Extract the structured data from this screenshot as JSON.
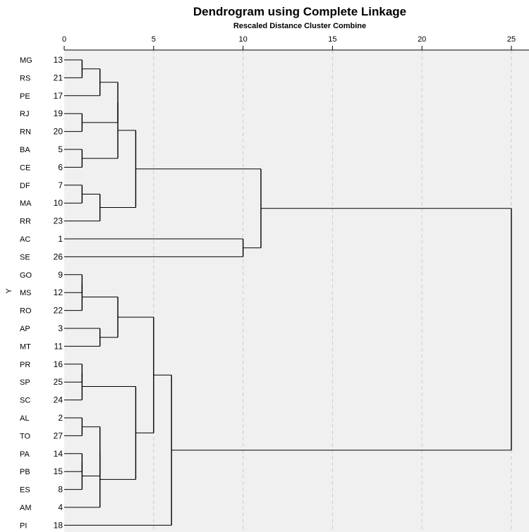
{
  "chart_data": {
    "type": "dendrogram",
    "title": "Dendrogram using Complete Linkage",
    "subtitle": "Rescaled Distance Cluster Combine",
    "ylabel": "Y",
    "x_ticks": [
      0,
      5,
      10,
      15,
      20,
      25
    ],
    "xlim": [
      0,
      25
    ],
    "grid": true,
    "colors": {
      "plot_bg": "#f0f0f0",
      "grid": "#cccccc",
      "link": "#000000"
    },
    "leaves": [
      {
        "label": "MG",
        "case": "13"
      },
      {
        "label": "RS",
        "case": "21"
      },
      {
        "label": "PE",
        "case": "17"
      },
      {
        "label": "RJ",
        "case": "19"
      },
      {
        "label": "RN",
        "case": "20"
      },
      {
        "label": "BA",
        "case": "5"
      },
      {
        "label": "CE",
        "case": "6"
      },
      {
        "label": "DF",
        "case": "7"
      },
      {
        "label": "MA",
        "case": "10"
      },
      {
        "label": "RR",
        "case": "23"
      },
      {
        "label": "AC",
        "case": "1"
      },
      {
        "label": "SE",
        "case": "26"
      },
      {
        "label": "GO",
        "case": "9"
      },
      {
        "label": "MS",
        "case": "12"
      },
      {
        "label": "RO",
        "case": "22"
      },
      {
        "label": "AP",
        "case": "3"
      },
      {
        "label": "MT",
        "case": "11"
      },
      {
        "label": "PR",
        "case": "16"
      },
      {
        "label": "SP",
        "case": "25"
      },
      {
        "label": "SC",
        "case": "24"
      },
      {
        "label": "AL",
        "case": "2"
      },
      {
        "label": "TO",
        "case": "27"
      },
      {
        "label": "PA",
        "case": "14"
      },
      {
        "label": "PB",
        "case": "15"
      },
      {
        "label": "ES",
        "case": "8"
      },
      {
        "label": "AM",
        "case": "4"
      },
      {
        "label": "PI",
        "case": "18"
      }
    ],
    "merges": [
      {
        "children": [
          "L0",
          "L1"
        ],
        "height": 1.0
      },
      {
        "children": [
          "L3",
          "L4"
        ],
        "height": 1.0
      },
      {
        "children": [
          "L5",
          "L6"
        ],
        "height": 1.0
      },
      {
        "children": [
          "L7",
          "L8"
        ],
        "height": 1.0
      },
      {
        "children": [
          "L12",
          "L13"
        ],
        "height": 1.0
      },
      {
        "children": [
          "L17",
          "L18"
        ],
        "height": 1.0
      },
      {
        "children": [
          "L20",
          "L21"
        ],
        "height": 1.0
      },
      {
        "children": [
          "L22",
          "L23"
        ],
        "height": 1.0
      },
      {
        "children": [
          "M4",
          "L14"
        ],
        "height": 1.0
      },
      {
        "children": [
          "M5",
          "L19"
        ],
        "height": 1.0
      },
      {
        "children": [
          "M7",
          "L24"
        ],
        "height": 1.0
      },
      {
        "children": [
          "M0",
          "L2"
        ],
        "height": 2.0
      },
      {
        "children": [
          "M3",
          "L9"
        ],
        "height": 2.0
      },
      {
        "children": [
          "L15",
          "L16"
        ],
        "height": 2.0
      },
      {
        "children": [
          "M6",
          "M10"
        ],
        "height": 2.0
      },
      {
        "children": [
          "M14",
          "L25"
        ],
        "height": 2.0
      },
      {
        "children": [
          "M11",
          "M1"
        ],
        "height": 3.0
      },
      {
        "children": [
          "M8",
          "M13"
        ],
        "height": 3.0
      },
      {
        "children": [
          "M16",
          "M2"
        ],
        "height": 3.0
      },
      {
        "children": [
          "M18",
          "M12"
        ],
        "height": 4.0
      },
      {
        "children": [
          "M9",
          "M15"
        ],
        "height": 4.0
      },
      {
        "children": [
          "M17",
          "M20"
        ],
        "height": 5.0
      },
      {
        "children": [
          "M21",
          "L26"
        ],
        "height": 6.0
      },
      {
        "children": [
          "L10",
          "L11"
        ],
        "height": 10.0
      },
      {
        "children": [
          "M19",
          "M23"
        ],
        "height": 11.0
      },
      {
        "children": [
          "M24",
          "M22"
        ],
        "height": 25.0
      }
    ]
  }
}
